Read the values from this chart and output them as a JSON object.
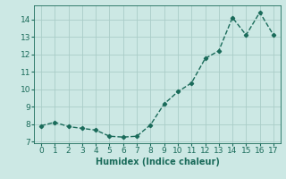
{
  "x": [
    0,
    1,
    2,
    3,
    4,
    5,
    6,
    7,
    8,
    9,
    10,
    11,
    12,
    13,
    14,
    15,
    16,
    17
  ],
  "y": [
    7.9,
    8.1,
    7.85,
    7.75,
    7.65,
    7.3,
    7.25,
    7.3,
    7.95,
    9.15,
    9.85,
    10.35,
    11.75,
    12.2,
    14.1,
    13.1,
    14.4,
    13.1
  ],
  "line_color": "#1a6b5a",
  "marker": "D",
  "marker_size": 2.2,
  "xlabel": "Humidex (Indice chaleur)",
  "xlim": [
    -0.5,
    17.5
  ],
  "ylim": [
    6.9,
    14.8
  ],
  "yticks": [
    7,
    8,
    9,
    10,
    11,
    12,
    13,
    14
  ],
  "xticks": [
    0,
    1,
    2,
    3,
    4,
    5,
    6,
    7,
    8,
    9,
    10,
    11,
    12,
    13,
    14,
    15,
    16,
    17
  ],
  "bg_color": "#cce8e4",
  "grid_color": "#aacdc8",
  "font_color": "#1a6b5a",
  "xlabel_fontsize": 7,
  "tick_fontsize": 6.5,
  "linewidth": 1.0
}
